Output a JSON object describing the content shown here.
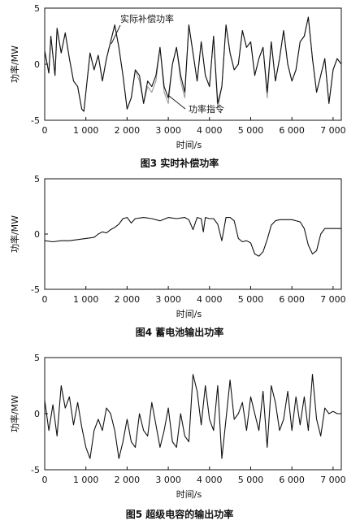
{
  "figures": [
    {
      "caption": "图3   实时补偿功率"
    },
    {
      "caption": "图4   蓄电池输出功率"
    },
    {
      "caption": "图5   超级电容的输出功率"
    }
  ],
  "chart_data": [
    {
      "type": "line",
      "xlabel": "时间/s",
      "ylabel": "功率/MW",
      "xlim": [
        0,
        7200
      ],
      "ylim": [
        -5,
        5
      ],
      "xticks": [
        "0",
        "1 000",
        "2 000",
        "3 000",
        "4 000",
        "5 000",
        "6 000",
        "7 000"
      ],
      "yticks": [
        "-5",
        "0",
        "5"
      ],
      "annotations": [
        "实际补偿功率",
        "功率指令"
      ],
      "series": [
        {
          "name": "实际补偿功率",
          "color": "#111111",
          "x": [
            0,
            100,
            150,
            250,
            300,
            400,
            500,
            600,
            700,
            800,
            900,
            950,
            1000,
            1100,
            1200,
            1300,
            1400,
            1500,
            1600,
            1700,
            1800,
            1900,
            2000,
            2100,
            2200,
            2300,
            2400,
            2500,
            2600,
            2700,
            2800,
            2900,
            3000,
            3100,
            3200,
            3300,
            3400,
            3500,
            3600,
            3700,
            3800,
            3900,
            4000,
            4100,
            4200,
            4300,
            4400,
            4500,
            4600,
            4700,
            4800,
            4900,
            5000,
            5100,
            5200,
            5300,
            5400,
            5500,
            5600,
            5700,
            5800,
            5900,
            6000,
            6100,
            6200,
            6300,
            6400,
            6500,
            6600,
            6700,
            6800,
            6900,
            7000,
            7100,
            7200
          ],
          "y": [
            1.2,
            -0.8,
            2.5,
            -1.0,
            3.2,
            1.0,
            2.8,
            0.5,
            -1.5,
            -2.0,
            -4.0,
            -4.2,
            -2.5,
            1.0,
            -0.5,
            0.8,
            -1.5,
            0.5,
            2.0,
            3.5,
            1.5,
            -1.0,
            -4.0,
            -3.0,
            -0.5,
            -1.0,
            -3.5,
            -1.5,
            -2.0,
            -1.0,
            1.5,
            -2.0,
            -3.0,
            0.0,
            1.5,
            -1.0,
            -2.5,
            3.5,
            1.0,
            -1.5,
            2.0,
            -1.0,
            -2.0,
            2.5,
            -3.5,
            -2.0,
            3.5,
            1.0,
            -0.5,
            0.0,
            3.0,
            1.5,
            2.0,
            -1.0,
            0.5,
            1.5,
            -2.5,
            2.0,
            -1.5,
            0.5,
            3.0,
            0.0,
            -1.5,
            -0.5,
            2.0,
            2.5,
            4.2,
            0.5,
            -2.5,
            -1.0,
            0.5,
            -3.5,
            -0.5,
            0.5,
            0.0
          ]
        },
        {
          "name": "功率指令",
          "color": "#999999",
          "x": [
            0,
            100,
            150,
            250,
            300,
            400,
            500,
            600,
            700,
            800,
            900,
            950,
            1000,
            1100,
            1200,
            1300,
            1400,
            1500,
            1600,
            1700,
            1800,
            1900,
            2000,
            2100,
            2200,
            2300,
            2400,
            2500,
            2600,
            2700,
            2800,
            2900,
            3000,
            3100,
            3200,
            3300,
            3400,
            3500,
            3600,
            3700,
            3800,
            3900,
            4000,
            4100,
            4200,
            4300,
            4400,
            4500,
            4600,
            4700,
            4800,
            4900,
            5000,
            5100,
            5200,
            5300,
            5400,
            5500,
            5600,
            5700,
            5800,
            5900,
            6000,
            6100,
            6200,
            6300,
            6400,
            6500,
            6600,
            6700,
            6800,
            6900,
            7000,
            7100,
            7200
          ],
          "y": [
            1.2,
            -0.8,
            2.5,
            -1.0,
            3.2,
            1.0,
            2.8,
            0.5,
            -1.5,
            -2.0,
            -4.0,
            -4.2,
            -2.5,
            1.0,
            -0.5,
            0.8,
            -1.5,
            0.5,
            2.0,
            3.5,
            1.5,
            -1.0,
            -4.0,
            -3.0,
            -0.5,
            -1.5,
            -3.5,
            -2.0,
            -2.5,
            -1.5,
            1.5,
            -2.5,
            -3.5,
            0.0,
            1.5,
            -1.5,
            -3.0,
            3.5,
            1.0,
            -1.5,
            2.0,
            -1.0,
            -2.0,
            2.5,
            -4.0,
            -2.0,
            3.5,
            1.0,
            -0.5,
            0.0,
            3.0,
            1.5,
            2.0,
            -1.0,
            0.5,
            1.5,
            -3.0,
            2.0,
            -1.5,
            0.5,
            3.0,
            0.0,
            -1.5,
            -0.5,
            2.0,
            2.5,
            4.2,
            0.5,
            -2.5,
            -1.0,
            0.5,
            -3.5,
            -0.5,
            0.5,
            0.0
          ]
        }
      ]
    },
    {
      "type": "line",
      "xlabel": "时间/s",
      "ylabel": "功率/MW",
      "xlim": [
        0,
        7200
      ],
      "ylim": [
        -5,
        5
      ],
      "xticks": [
        "0",
        "1 000",
        "2 000",
        "3 000",
        "4 000",
        "5 000",
        "6 000",
        "7 000"
      ],
      "yticks": [
        "-5",
        "0",
        "5"
      ],
      "series": [
        {
          "color": "#111111",
          "x": [
            0,
            200,
            400,
            600,
            800,
            1000,
            1200,
            1300,
            1400,
            1500,
            1600,
            1700,
            1800,
            1900,
            2000,
            2100,
            2200,
            2400,
            2600,
            2800,
            3000,
            3200,
            3400,
            3500,
            3600,
            3700,
            3800,
            3850,
            3900,
            4000,
            4100,
            4200,
            4300,
            4400,
            4500,
            4600,
            4700,
            4800,
            4900,
            5000,
            5100,
            5200,
            5300,
            5400,
            5500,
            5600,
            5700,
            5800,
            5900,
            6000,
            6200,
            6300,
            6400,
            6500,
            6600,
            6700,
            6800,
            6900,
            7000,
            7100,
            7200
          ],
          "y": [
            -0.6,
            -0.7,
            -0.6,
            -0.6,
            -0.5,
            -0.4,
            -0.3,
            0.0,
            0.2,
            0.1,
            0.4,
            0.6,
            0.9,
            1.4,
            1.5,
            1.0,
            1.4,
            1.5,
            1.4,
            1.2,
            1.5,
            1.4,
            1.5,
            1.3,
            0.4,
            1.5,
            1.4,
            0.2,
            1.5,
            1.4,
            1.4,
            0.9,
            -0.6,
            1.5,
            1.5,
            1.2,
            -0.4,
            -0.7,
            -0.6,
            -0.8,
            -1.8,
            -2.0,
            -1.6,
            -0.5,
            0.8,
            1.2,
            1.3,
            1.3,
            1.3,
            1.3,
            1.1,
            0.5,
            -1.0,
            -1.8,
            -1.5,
            0.0,
            0.5,
            0.5,
            0.5,
            0.5,
            0.5
          ]
        }
      ]
    },
    {
      "type": "line",
      "xlabel": "时间/s",
      "ylabel": "功率/MW",
      "xlim": [
        0,
        7200
      ],
      "ylim": [
        -5,
        5
      ],
      "xticks": [
        "0",
        "1 000",
        "2 000",
        "3 000",
        "4 000",
        "5 000",
        "6 000",
        "7 000"
      ],
      "yticks": [
        "-5",
        "0",
        "5"
      ],
      "series": [
        {
          "color": "#111111",
          "x": [
            0,
            100,
            200,
            300,
            400,
            500,
            600,
            700,
            800,
            900,
            1000,
            1100,
            1200,
            1300,
            1400,
            1500,
            1600,
            1700,
            1800,
            1900,
            2000,
            2100,
            2200,
            2300,
            2400,
            2500,
            2600,
            2700,
            2800,
            2900,
            3000,
            3100,
            3200,
            3300,
            3400,
            3500,
            3600,
            3700,
            3800,
            3900,
            4000,
            4100,
            4200,
            4300,
            4400,
            4500,
            4600,
            4700,
            4800,
            4900,
            5000,
            5100,
            5200,
            5300,
            5400,
            5500,
            5600,
            5700,
            5800,
            5900,
            6000,
            6100,
            6200,
            6300,
            6400,
            6500,
            6600,
            6700,
            6800,
            6900,
            7000,
            7100,
            7200
          ],
          "y": [
            1.2,
            -1.5,
            0.8,
            -2.0,
            2.5,
            0.5,
            1.5,
            -1.0,
            1.0,
            -1.2,
            -3.0,
            -4.0,
            -1.5,
            -0.5,
            -1.5,
            0.5,
            0.0,
            -1.5,
            -4.0,
            -2.5,
            -0.5,
            -2.5,
            -3.0,
            0.0,
            -1.5,
            -2.0,
            1.0,
            -1.0,
            -3.0,
            -1.5,
            0.5,
            -2.5,
            -3.0,
            0.0,
            -2.0,
            -2.5,
            3.5,
            2.0,
            -1.0,
            2.5,
            -0.5,
            -1.5,
            2.5,
            -4.0,
            -0.5,
            3.0,
            -0.5,
            0.0,
            1.0,
            -1.5,
            1.5,
            0.0,
            -1.5,
            2.0,
            -3.0,
            2.5,
            1.0,
            -1.5,
            -0.5,
            2.0,
            -1.5,
            1.5,
            -1.0,
            1.5,
            -1.5,
            3.5,
            -0.5,
            -2.0,
            0.5,
            0.0,
            0.2,
            0.0,
            0.0
          ]
        }
      ]
    }
  ]
}
